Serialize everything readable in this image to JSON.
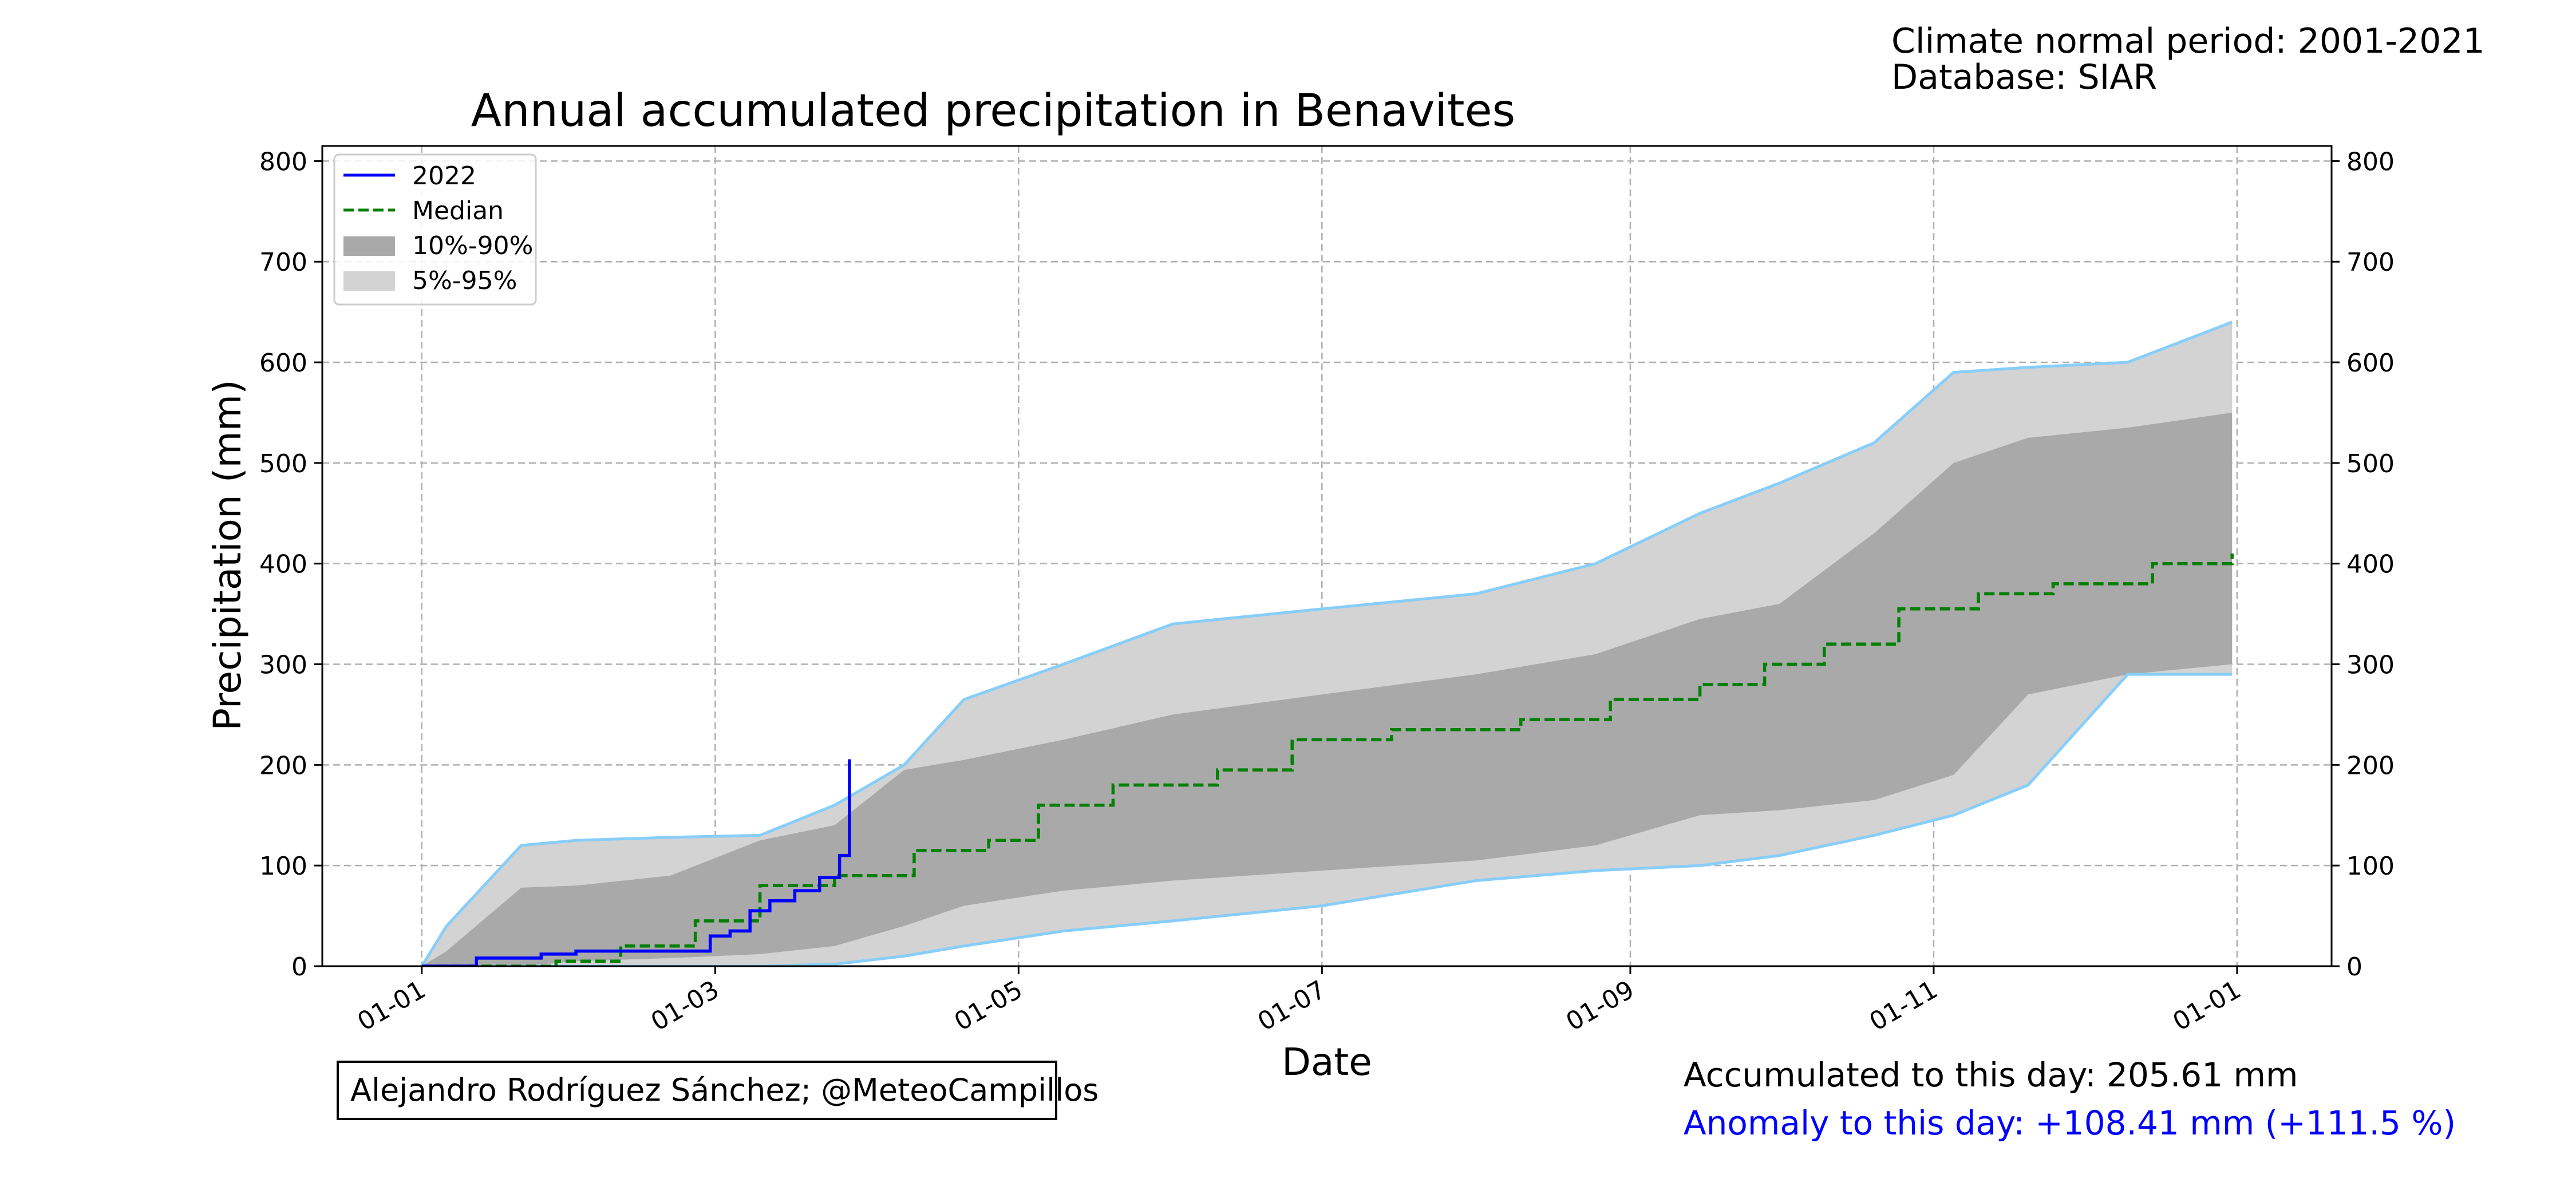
{
  "header": {
    "normal_period": "Climate normal period: 2001-2021",
    "database": "Database: SIAR"
  },
  "footer": {
    "author": "Alejandro Rodríguez Sánchez; @MeteoCampillos",
    "accumulated": "Accumulated to this day: 205.61 mm",
    "anomaly": "Anomaly to this day: +108.41 mm (+111.5 %)"
  },
  "colors": {
    "current_year": "#0000ff",
    "median": "#008000",
    "band_10_90": "#a9a9a9",
    "band_5_95": "#d3d3d3",
    "past_years": "#87cefa",
    "grid": "#b0b0b0",
    "anomaly_text": "#0000ff"
  },
  "chart_data": {
    "type": "line",
    "title": "Annual accumulated precipitation in Benavites",
    "xlabel": "Date",
    "ylabel": "Precipitation (mm)",
    "xlim": [
      "2021-12-12",
      "2023-01-20"
    ],
    "ylim": [
      0,
      815
    ],
    "x_ticks": [
      {
        "date": "2022-01-01",
        "label": "01-01"
      },
      {
        "date": "2022-03-01",
        "label": "01-03"
      },
      {
        "date": "2022-05-01",
        "label": "01-05"
      },
      {
        "date": "2022-07-01",
        "label": "01-07"
      },
      {
        "date": "2022-09-01",
        "label": "01-09"
      },
      {
        "date": "2022-11-01",
        "label": "01-11"
      },
      {
        "date": "2023-01-01",
        "label": "01-01"
      }
    ],
    "y_ticks": [
      0,
      100,
      200,
      300,
      400,
      500,
      600,
      700,
      800
    ],
    "grid": true,
    "grid_style": "dashed",
    "secondary_y_axis": true,
    "legend_position": "top-left",
    "legend": [
      "2022",
      "Median",
      "10%-90%",
      "5%-95%"
    ],
    "band_5_95": {
      "x": [
        "2022-01-01",
        "2022-01-06",
        "2022-01-21",
        "2022-02-01",
        "2022-02-20",
        "2022-03-10",
        "2022-03-25",
        "2022-04-08",
        "2022-04-20",
        "2022-05-10",
        "2022-06-01",
        "2022-07-01",
        "2022-08-01",
        "2022-08-25",
        "2022-09-15",
        "2022-10-01",
        "2022-10-20",
        "2022-11-05",
        "2022-11-20",
        "2022-12-10",
        "2022-12-31"
      ],
      "lower": [
        0,
        0,
        0,
        0,
        0,
        0,
        2,
        10,
        20,
        35,
        45,
        60,
        85,
        95,
        100,
        110,
        130,
        150,
        180,
        290,
        290
      ],
      "upper": [
        0,
        40,
        120,
        125,
        128,
        130,
        160,
        200,
        265,
        300,
        340,
        355,
        370,
        400,
        450,
        480,
        520,
        590,
        595,
        600,
        640
      ]
    },
    "band_10_90": {
      "x": [
        "2022-01-01",
        "2022-01-06",
        "2022-01-21",
        "2022-02-01",
        "2022-02-20",
        "2022-03-10",
        "2022-03-25",
        "2022-04-08",
        "2022-04-20",
        "2022-05-10",
        "2022-06-01",
        "2022-07-01",
        "2022-08-01",
        "2022-08-25",
        "2022-09-15",
        "2022-10-01",
        "2022-10-20",
        "2022-11-05",
        "2022-11-20",
        "2022-12-10",
        "2022-12-31"
      ],
      "lower": [
        0,
        0,
        0,
        5,
        8,
        12,
        20,
        40,
        60,
        75,
        85,
        95,
        105,
        120,
        150,
        155,
        165,
        190,
        270,
        290,
        300
      ],
      "upper": [
        0,
        15,
        78,
        80,
        90,
        125,
        140,
        195,
        205,
        225,
        250,
        270,
        290,
        310,
        345,
        360,
        430,
        500,
        525,
        535,
        550
      ]
    },
    "series": [
      {
        "name": "2022",
        "x": [
          "2022-01-01",
          "2022-01-07",
          "2022-01-12",
          "2022-01-22",
          "2022-01-25",
          "2022-02-01",
          "2022-02-25",
          "2022-02-28",
          "2022-03-04",
          "2022-03-08",
          "2022-03-12",
          "2022-03-17",
          "2022-03-22",
          "2022-03-26",
          "2022-03-28"
        ],
        "values": [
          0,
          0,
          8,
          8,
          12,
          15,
          15,
          30,
          35,
          55,
          65,
          75,
          88,
          110,
          205.61
        ]
      },
      {
        "name": "Median",
        "x": [
          "2022-01-01",
          "2022-01-15",
          "2022-01-28",
          "2022-02-10",
          "2022-02-25",
          "2022-03-10",
          "2022-03-25",
          "2022-04-10",
          "2022-04-25",
          "2022-05-05",
          "2022-05-20",
          "2022-06-10",
          "2022-06-25",
          "2022-07-15",
          "2022-08-10",
          "2022-08-28",
          "2022-09-15",
          "2022-09-28",
          "2022-10-10",
          "2022-10-25",
          "2022-11-10",
          "2022-11-25",
          "2022-12-15",
          "2022-12-31"
        ],
        "values": [
          0,
          0,
          5,
          20,
          45,
          80,
          90,
          115,
          125,
          160,
          180,
          195,
          225,
          235,
          245,
          265,
          280,
          300,
          320,
          355,
          370,
          380,
          400,
          410
        ]
      }
    ],
    "past_year_count": 21
  }
}
